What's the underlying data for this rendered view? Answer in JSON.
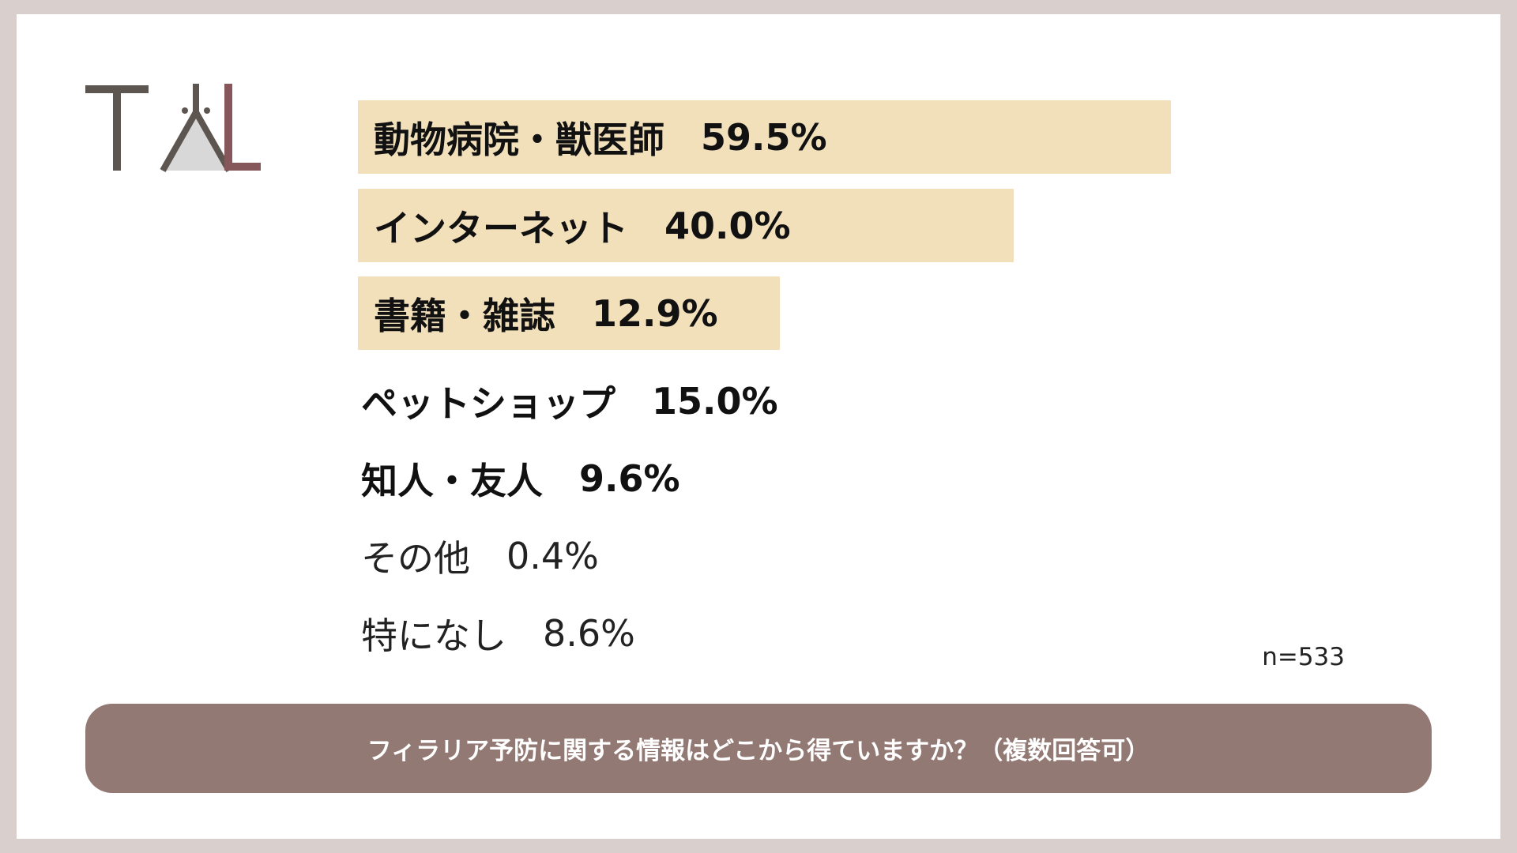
{
  "items": [
    {
      "label": "動物病院・獣医師",
      "value": "59.5%",
      "style": "highlight"
    },
    {
      "label": "インターネット",
      "value": "40.0%",
      "style": "highlight"
    },
    {
      "label": "書籍・雑誌",
      "value": "12.9%",
      "style": "highlight"
    },
    {
      "label": "ペットショップ",
      "value": "15.0%",
      "style": "bold"
    },
    {
      "label": "知人・友人",
      "value": "9.6%",
      "style": "bold"
    },
    {
      "label": "その他",
      "value": "0.4%",
      "style": "normal"
    },
    {
      "label": "特になし",
      "value": "8.6%",
      "style": "normal"
    }
  ],
  "note": "n=533",
  "question": "フィラリア予防に関する情報はどこから得ていますか？（複数回答可）"
}
